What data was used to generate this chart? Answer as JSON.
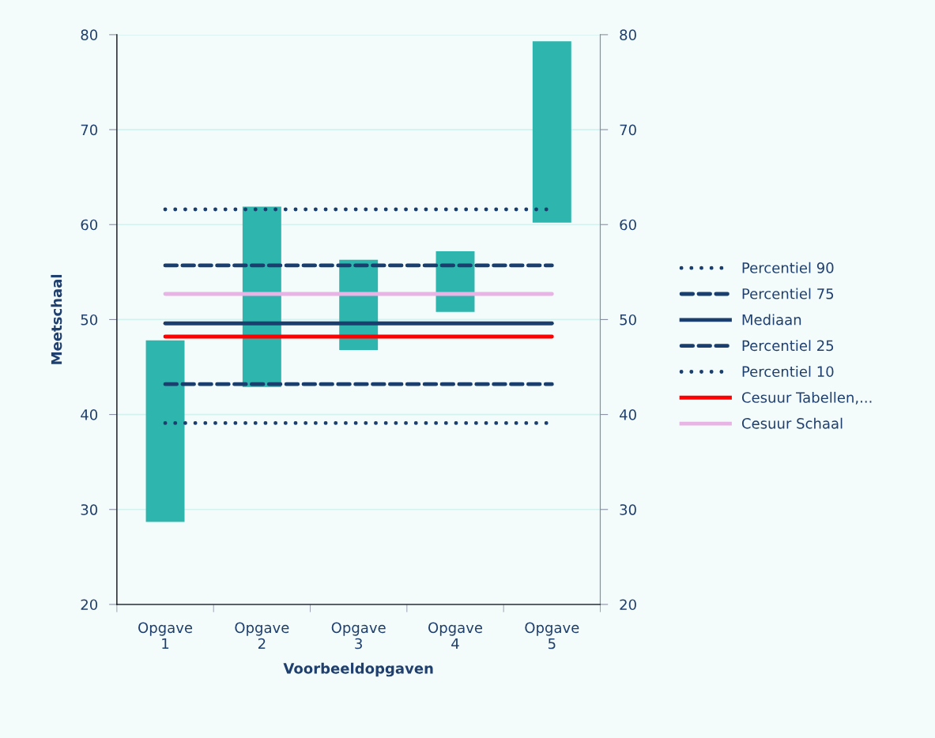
{
  "chart_data": {
    "type": "bar",
    "xlabel": "Voorbeeldopgaven",
    "ylabel": "Meetschaal",
    "categories": [
      "Opgave\n1",
      "Opgave\n2",
      "Opgave\n3",
      "Opgave\n4",
      "Opgave\n5"
    ],
    "series": [
      {
        "color": "#2eb5ad",
        "base": [
          28.7,
          42.9,
          46.8,
          50.8,
          60.2
        ],
        "values": [
          19.1,
          19.0,
          9.5,
          6.4,
          19.1
        ]
      },
      {
        "type": "line",
        "name": "Percentiel 90",
        "color": "#1a3f6f",
        "line_style": "dotted",
        "values": [
          61.6,
          61.6,
          61.6,
          61.6,
          61.6
        ]
      },
      {
        "type": "line",
        "name": "Percentiel 75",
        "color": "#1a3f6f",
        "line_style": "dashed",
        "values": [
          55.7,
          55.7,
          55.7,
          55.7,
          55.7
        ]
      },
      {
        "type": "line",
        "name": "Mediaan",
        "color": "#1a3f6f",
        "line_style": "solid",
        "values": [
          49.6,
          49.6,
          49.6,
          49.6,
          49.6
        ]
      },
      {
        "type": "line",
        "name": "Percentiel 25",
        "color": "#1a3f6f",
        "line_style": "dashed",
        "values": [
          43.2,
          43.2,
          43.2,
          43.2,
          43.2
        ]
      },
      {
        "type": "line",
        "name": "Percentiel 10",
        "color": "#1a3f6f",
        "line_style": "dotted",
        "values": [
          39.1,
          39.1,
          39.1,
          39.1,
          39.1
        ]
      },
      {
        "type": "line",
        "name": "Cesuur Tabellen,...",
        "color": "#ff0000",
        "line_style": "solid",
        "values": [
          48.2,
          48.2,
          48.2,
          48.2,
          48.2
        ]
      },
      {
        "type": "line",
        "name": "Cesuur Schaal",
        "color": "#e8b4e6",
        "line_style": "solid",
        "values": [
          52.7,
          52.7,
          52.7,
          52.7,
          52.7
        ]
      }
    ],
    "ylim": [
      20,
      80
    ],
    "yticks": [
      20,
      30,
      40,
      50,
      60,
      70,
      80
    ],
    "y2lim": [
      20,
      80
    ],
    "y2ticks": [
      20,
      30,
      40,
      50,
      60,
      70,
      80
    ],
    "grid": "y",
    "legend": "right"
  }
}
